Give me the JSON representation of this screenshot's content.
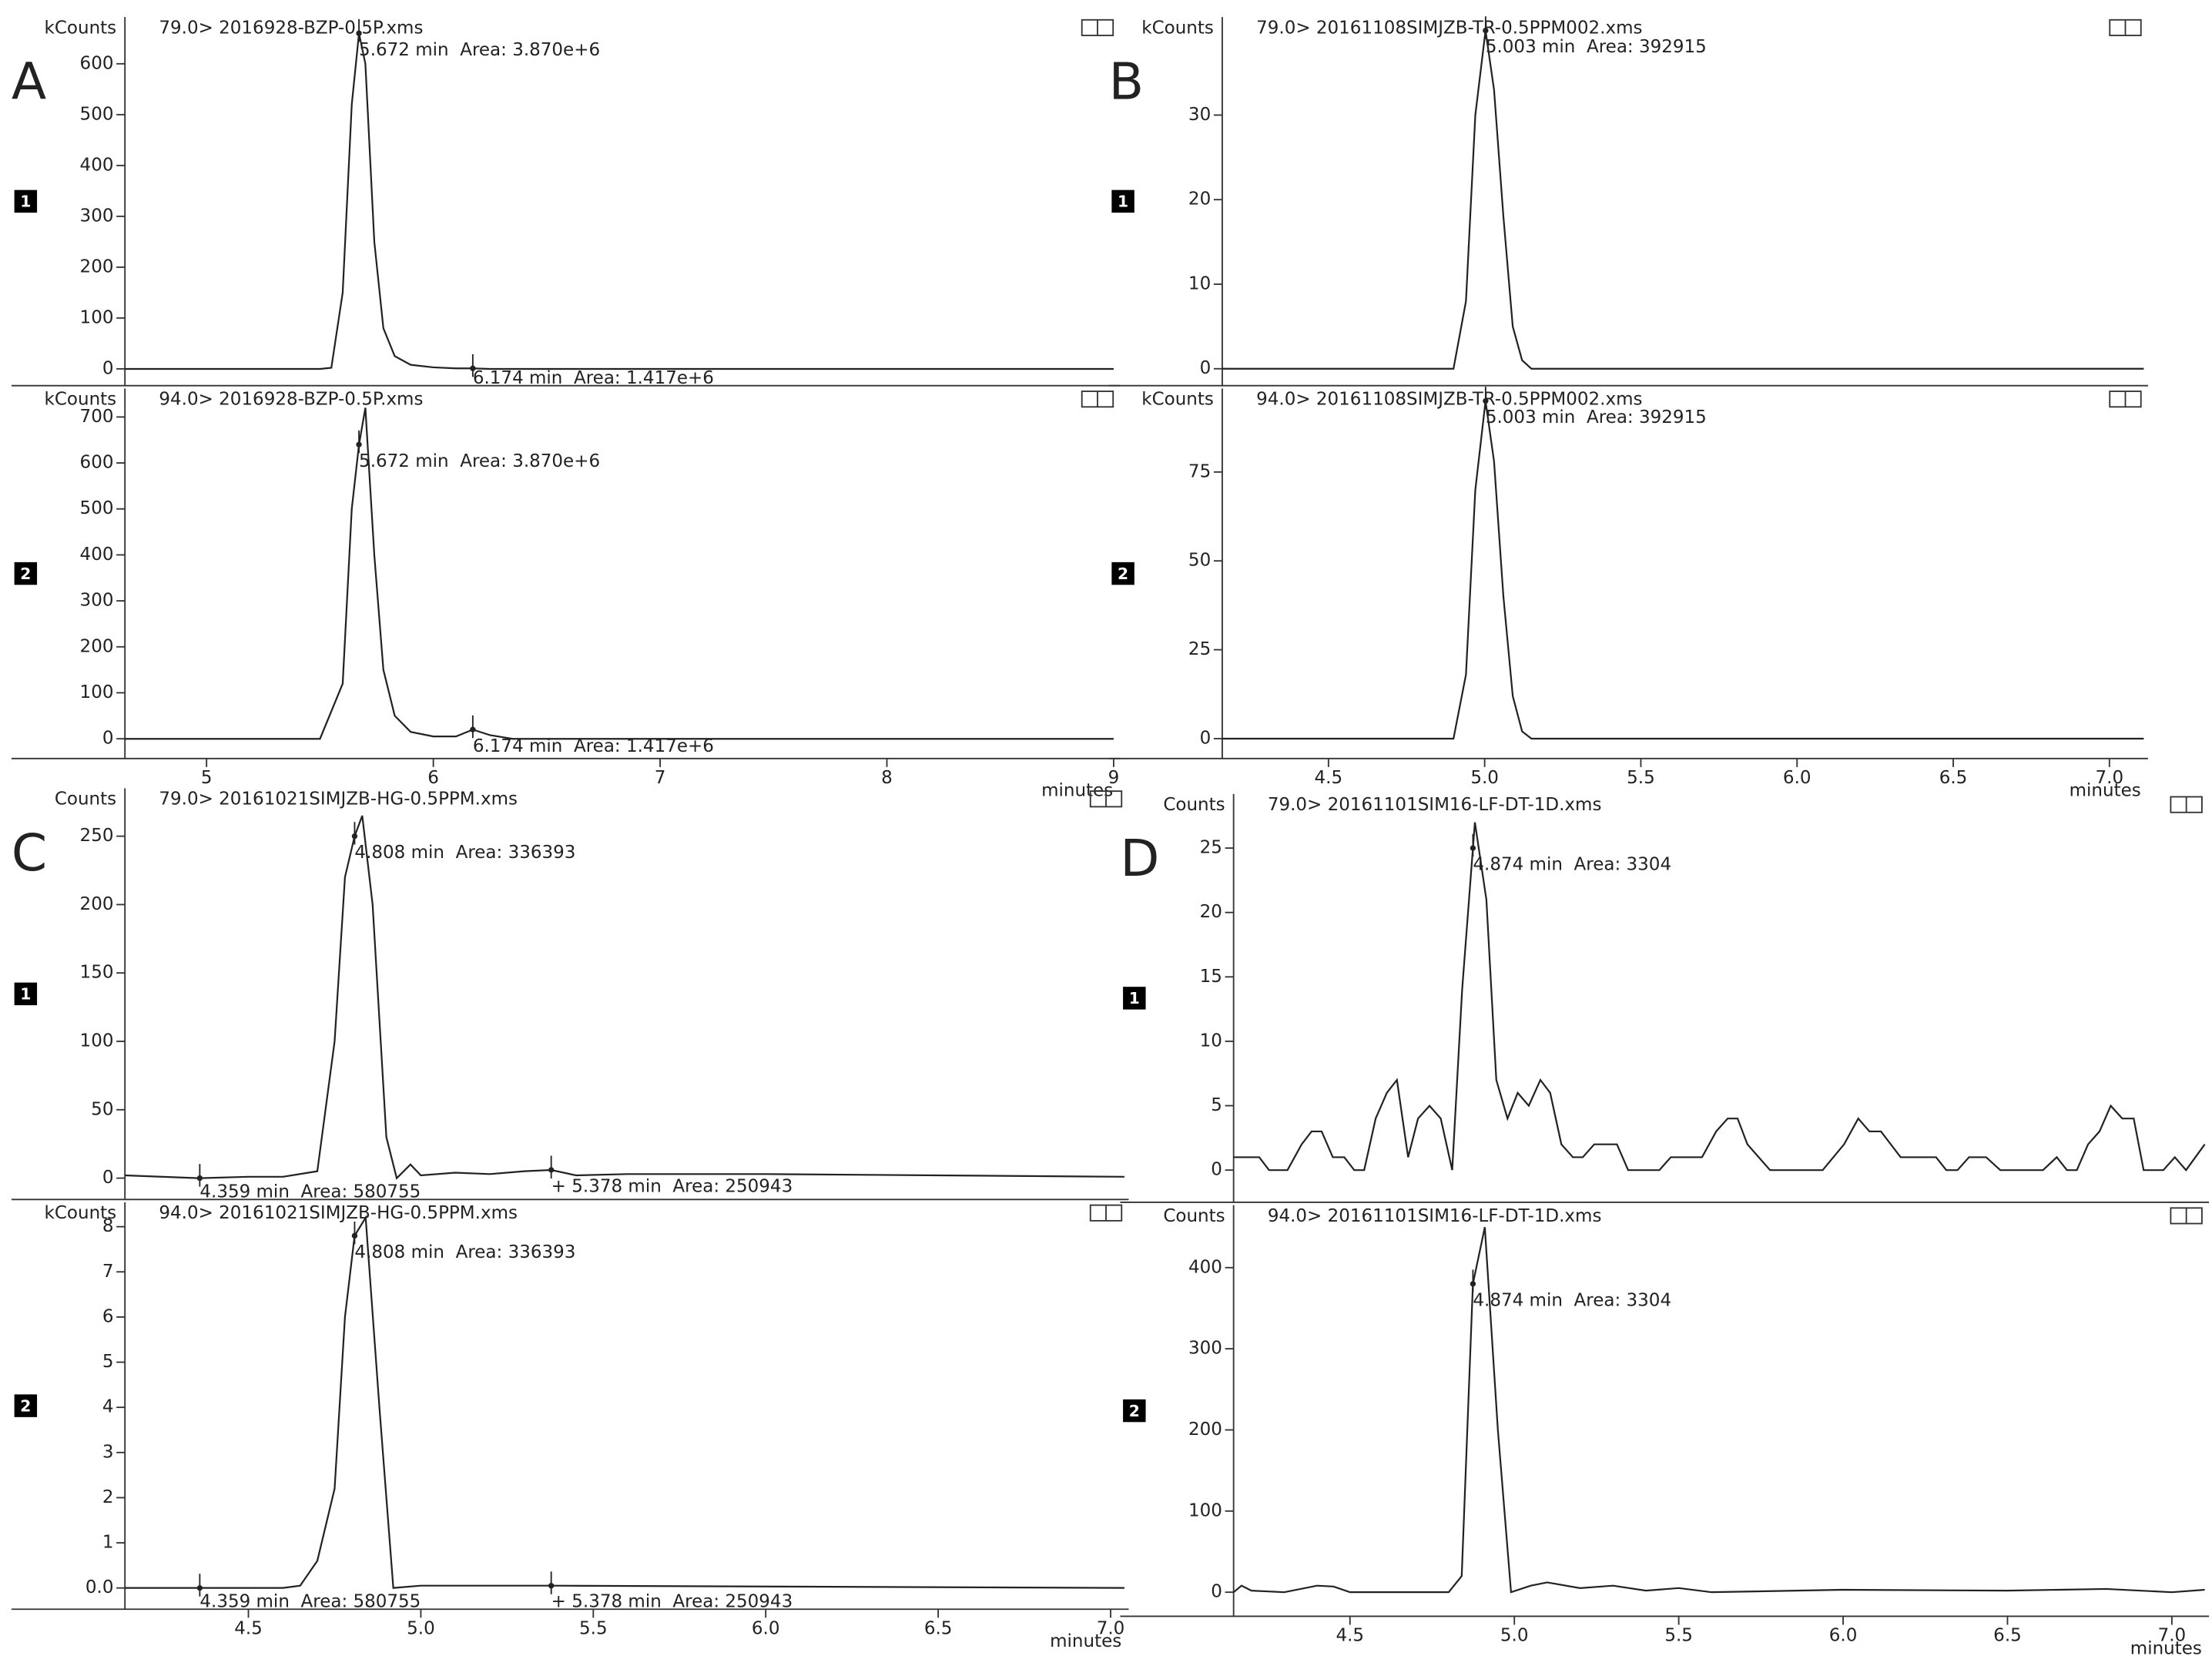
{
  "chart_data": [
    {
      "type": "line",
      "panel": "A",
      "trace": "1",
      "ylabel": "kCounts",
      "title": "79.0> 2016928-BZP-0.5P.xms",
      "x": [
        4.64,
        5.5,
        5.55,
        5.6,
        5.64,
        5.672,
        5.7,
        5.74,
        5.78,
        5.83,
        5.9,
        6.0,
        6.1,
        6.174,
        6.25,
        9.0
      ],
      "values": [
        0,
        0,
        2,
        150,
        520,
        660,
        600,
        250,
        80,
        25,
        8,
        3,
        1,
        1,
        0,
        0
      ],
      "xlim": [
        4.64,
        9.01
      ],
      "ylim": [
        -33,
        692
      ],
      "yticks": [
        0,
        100,
        200,
        300,
        400,
        500,
        600
      ],
      "annotations": [
        {
          "x": 5.672,
          "text": "5.672 min  Area: 3.870e+6"
        },
        {
          "x": 6.174,
          "text": "6.174 min  Area: 1.417e+6"
        }
      ]
    },
    {
      "type": "line",
      "trace": "2",
      "ylabel": "kCounts",
      "title": "94.0> 2016928-BZP-0.5P.xms",
      "x": [
        4.64,
        5.5,
        5.6,
        5.64,
        5.672,
        5.7,
        5.74,
        5.78,
        5.83,
        5.9,
        6.0,
        6.1,
        6.174,
        6.25,
        6.35,
        9.0
      ],
      "values": [
        0,
        0,
        120,
        500,
        640,
        720,
        400,
        150,
        50,
        15,
        5,
        5,
        20,
        8,
        0,
        0
      ],
      "xlim": [
        4.64,
        9.01
      ],
      "ylim": [
        -43,
        762
      ],
      "yticks": [
        0,
        100,
        200,
        300,
        400,
        500,
        600,
        700
      ],
      "xticks": [
        5,
        6,
        7,
        8,
        9
      ],
      "xlabel": "minutes",
      "annotations": [
        {
          "x": 5.672,
          "text": "5.672 min  Area: 3.870e+6"
        },
        {
          "x": 6.174,
          "text": "6.174 min  Area: 1.417e+6"
        }
      ]
    },
    {
      "type": "line",
      "panel": "B",
      "trace": "1",
      "ylabel": "kCounts",
      "title": "79.0> 20161108SIMJZB-TR-0.5PPM002.xms",
      "x": [
        4.16,
        4.9,
        4.94,
        4.97,
        5.003,
        5.03,
        5.06,
        5.09,
        5.12,
        5.15,
        7.11
      ],
      "values": [
        0,
        0,
        8,
        30,
        40,
        33,
        18,
        5,
        1,
        0,
        0
      ],
      "xlim": [
        4.16,
        7.11
      ],
      "ylim": [
        -2,
        41.6
      ],
      "yticks": [
        0,
        10,
        20,
        30
      ],
      "annotations": [
        {
          "x": 5.003,
          "text": "5.003 min  Area: 392915"
        }
      ]
    },
    {
      "type": "line",
      "trace": "2",
      "ylabel": "kCounts",
      "title": "94.0> 20161108SIMJZB-TR-0.5PPM002.xms",
      "x": [
        4.16,
        4.9,
        4.94,
        4.97,
        5.003,
        5.03,
        5.06,
        5.09,
        5.12,
        5.15,
        7.11
      ],
      "values": [
        0,
        0,
        18,
        70,
        95,
        78,
        40,
        12,
        2,
        0,
        0
      ],
      "xlim": [
        4.16,
        7.11
      ],
      "ylim": [
        -5.6,
        98.5
      ],
      "yticks": [
        0,
        25,
        50,
        75
      ],
      "xticks": [
        4.5,
        {
          "value": 5,
          "label": "5.0"
        },
        5.5,
        {
          "value": 6,
          "label": "6.0"
        },
        6.5,
        {
          "value": 7,
          "label": "7.0"
        }
      ],
      "xlabel": "minutes",
      "annotations": [
        {
          "x": 5.003,
          "text": "5.003 min  Area: 392915"
        }
      ]
    },
    {
      "type": "line",
      "panel": "C",
      "trace": "1",
      "ylabel": "Counts",
      "title": "79.0> 20161021SIMJZB-HG-0.5PPM.xms",
      "x": [
        4.142,
        4.359,
        4.5,
        4.6,
        4.7,
        4.75,
        4.78,
        4.808,
        4.83,
        4.86,
        4.9,
        4.93,
        4.97,
        5.0,
        5.1,
        5.2,
        5.3,
        5.378,
        5.45,
        5.6,
        6.0,
        6.5,
        7.04
      ],
      "values": [
        2,
        0,
        1,
        1,
        5,
        100,
        220,
        250,
        265,
        200,
        30,
        0,
        10,
        2,
        4,
        3,
        5,
        6,
        2,
        3,
        3,
        2,
        1
      ],
      "xlim": [
        4.142,
        7.04
      ],
      "ylim": [
        -15.6,
        285
      ],
      "yticks": [
        0,
        50,
        100,
        150,
        200,
        250
      ],
      "annotations": [
        {
          "x": 4.808,
          "text": "4.808 min  Area: 336393"
        },
        {
          "x": 4.359,
          "text": "4.359 min  Area: 580755"
        },
        {
          "x": 5.378,
          "text": "+ 5.378 min  Area: 250943"
        }
      ]
    },
    {
      "type": "line",
      "trace": "2",
      "ylabel": "kCounts",
      "title": "94.0> 20161021SIMJZB-HG-0.5PPM.xms",
      "x": [
        4.142,
        4.359,
        4.6,
        4.65,
        4.7,
        4.75,
        4.78,
        4.808,
        4.84,
        4.88,
        4.92,
        5.0,
        5.378,
        7.04
      ],
      "values": [
        0,
        0,
        0,
        0.05,
        0.6,
        2.2,
        6,
        7.8,
        8.2,
        4,
        0,
        0.05,
        0.05,
        0
      ],
      "xlim": [
        4.142,
        7.04
      ],
      "ylim": [
        -0.47,
        8.54
      ],
      "yticks": [
        {
          "value": 0,
          "label": "0.0"
        },
        1,
        2,
        3,
        4,
        5,
        6,
        7,
        8
      ],
      "xticks": [
        4.5,
        {
          "value": 5,
          "label": "5.0"
        },
        5.5,
        {
          "value": 6,
          "label": "6.0"
        },
        6.5,
        {
          "value": 7,
          "label": "7.0"
        }
      ],
      "xlabel": "minutes",
      "annotations": [
        {
          "x": 4.808,
          "text": "4.808 min  Area: 336393"
        },
        {
          "x": 4.359,
          "text": "4.359 min  Area: 580755"
        },
        {
          "x": 5.378,
          "text": "+ 5.378 min  Area: 250943"
        }
      ]
    },
    {
      "type": "line",
      "panel": "D",
      "trace": "1",
      "ylabel": "Counts",
      "title": "79.0> 20161101SIM16-LF-DT-1D.xms",
      "x": [
        4.146,
        4.224,
        4.254,
        4.31,
        4.353,
        4.383,
        4.414,
        4.448,
        4.483,
        4.513,
        4.543,
        4.578,
        4.612,
        4.643,
        4.677,
        4.707,
        4.742,
        4.776,
        4.811,
        4.841,
        4.88,
        4.915,
        4.945,
        4.979,
        5.01,
        5.044,
        5.079,
        5.109,
        5.143,
        5.178,
        5.208,
        5.243,
        5.312,
        5.346,
        5.441,
        5.476,
        5.571,
        5.614,
        5.649,
        5.679,
        5.709,
        5.778,
        5.938,
        6.003,
        6.046,
        6.08,
        6.115,
        6.175,
        6.283,
        6.314,
        6.348,
        6.383,
        6.435,
        6.478,
        6.608,
        6.65,
        6.681,
        6.711,
        6.745,
        6.78,
        6.814,
        6.849,
        6.884,
        6.914,
        6.974,
        7.009,
        7.043,
        7.1
      ],
      "values": [
        1,
        1,
        0,
        0,
        2,
        3,
        3,
        1,
        1,
        0,
        0,
        4,
        6,
        7,
        1,
        4,
        5,
        4,
        0,
        14,
        27,
        21,
        7,
        4,
        6,
        5,
        7,
        6,
        2,
        1,
        1,
        2,
        2,
        0,
        0,
        1,
        1,
        3,
        4,
        4,
        2,
        0,
        0,
        2,
        4,
        3,
        3,
        1,
        1,
        0,
        0,
        1,
        1,
        0,
        0,
        1,
        0,
        0,
        2,
        3,
        5,
        4,
        4,
        0,
        0,
        1,
        0,
        2
      ],
      "xlim": [
        4.146,
        7.1
      ],
      "ylim": [
        -2.5,
        29.2
      ],
      "yticks": [
        0,
        5,
        10,
        15,
        20,
        25
      ],
      "annotations": [
        {
          "x": 4.874,
          "text": "4.874 min  Area: 3304"
        }
      ]
    },
    {
      "type": "line",
      "trace": "2",
      "ylabel": "Counts",
      "title": "94.0> 20161101SIM16-LF-DT-1D.xms",
      "x": [
        4.146,
        4.17,
        4.2,
        4.3,
        4.4,
        4.45,
        4.5,
        4.8,
        4.84,
        4.874,
        4.91,
        4.95,
        4.99,
        5.05,
        5.1,
        5.2,
        5.3,
        5.4,
        5.5,
        5.6,
        6.0,
        6.5,
        6.8,
        7.0,
        7.1
      ],
      "values": [
        0,
        8,
        2,
        0,
        8,
        7,
        0,
        0,
        20,
        380,
        450,
        200,
        0,
        8,
        12,
        5,
        8,
        2,
        5,
        0,
        3,
        2,
        4,
        0,
        3
      ],
      "xlim": [
        4.146,
        7.1
      ],
      "ylim": [
        -29.7,
        477
      ],
      "yticks": [
        0,
        100,
        200,
        300,
        400
      ],
      "xticks": [
        4.5,
        {
          "value": 5,
          "label": "5.0"
        },
        5.5,
        {
          "value": 6,
          "label": "6.0"
        },
        6.5,
        {
          "value": 7,
          "label": "7.0"
        }
      ],
      "xlabel": "minutes",
      "annotations": [
        {
          "x": 4.874,
          "text": "4.874 min  Area: 3304"
        }
      ]
    }
  ]
}
